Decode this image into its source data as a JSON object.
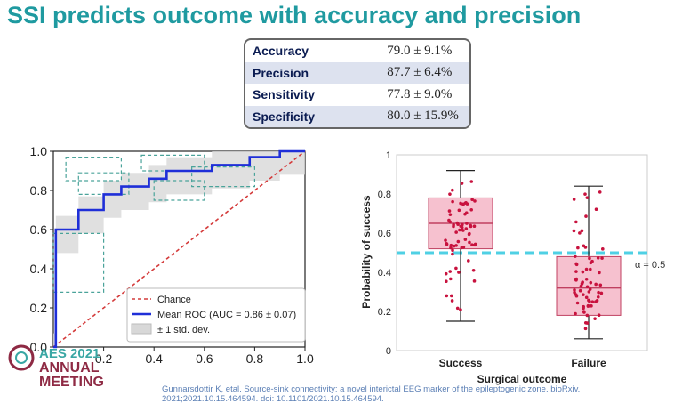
{
  "slide": {
    "title": "SSI predicts outcome with accuracy and precision",
    "metrics": [
      {
        "label": "Accuracy",
        "value": "79.0 ± 9.1%"
      },
      {
        "label": "Precision",
        "value": "87.7 ± 6.4%"
      },
      {
        "label": "Sensitivity",
        "value": "77.8 ± 9.0%"
      },
      {
        "label": "Specificity",
        "value": "80.0 ± 15.9%"
      }
    ],
    "citation": "Gunnarsdottir K, etal. Source-sink connectivity: a novel interictal EEG marker of the epileptogenic zone. bioRxiv. 2021;2021.10.15.464594. doi: 10.1101/2021.10.15.464594.",
    "logo": {
      "line1": "AES 2021",
      "line2": "ANNUAL",
      "line3": "MEETING"
    }
  },
  "colors": {
    "title": "#1f9aa0",
    "roc_mean": "#1f2fd8",
    "chance": "#d43b3b",
    "box_fill": "#f6c1cf",
    "point": "#c8123e",
    "threshold": "#4fd0e4"
  },
  "chart_data": [
    {
      "type": "line",
      "title": "",
      "xlabel": "",
      "ylabel": "",
      "xlim": [
        0,
        1.0
      ],
      "ylim": [
        0,
        1.0
      ],
      "x_ticks": [
        "0.2",
        "0.4",
        "0.6",
        "0.8",
        "1.0"
      ],
      "y_ticks": [
        "0.0",
        "0.2",
        "0.4",
        "0.6",
        "0.8",
        "1.0"
      ],
      "series": [
        {
          "name": "Chance",
          "style": "dashed",
          "x": [
            0,
            1
          ],
          "y": [
            0,
            1
          ]
        },
        {
          "name": "Mean ROC (AUC = 0.86 ± 0.07)",
          "x": [
            0,
            0.01,
            0.01,
            0.1,
            0.1,
            0.2,
            0.2,
            0.27,
            0.27,
            0.38,
            0.38,
            0.45,
            0.45,
            0.63,
            0.63,
            0.78,
            0.78,
            0.9,
            0.9,
            1.0
          ],
          "y": [
            0,
            0,
            0.6,
            0.6,
            0.7,
            0.7,
            0.78,
            0.78,
            0.82,
            0.82,
            0.86,
            0.86,
            0.9,
            0.9,
            0.93,
            0.93,
            0.97,
            0.97,
            1.0,
            1.0
          ]
        }
      ],
      "band_label": "± 1 std. dev.",
      "legend": "bottom-right"
    },
    {
      "type": "box",
      "title": "",
      "xlabel": "Surgical outcome",
      "ylabel": "Probability of success",
      "categories": [
        "Success",
        "Failure"
      ],
      "ylim": [
        0,
        1
      ],
      "y_ticks": [
        "0",
        "0.2",
        "0.4",
        "0.6",
        "0.8",
        "1"
      ],
      "boxes": [
        {
          "name": "Success",
          "whisker_low": 0.15,
          "q1": 0.52,
          "median": 0.65,
          "q3": 0.78,
          "whisker_high": 0.92
        },
        {
          "name": "Failure",
          "whisker_low": 0.06,
          "q1": 0.18,
          "median": 0.32,
          "q3": 0.48,
          "whisker_high": 0.84
        }
      ],
      "threshold": {
        "value": 0.5,
        "label": "α = 0.5"
      }
    }
  ]
}
